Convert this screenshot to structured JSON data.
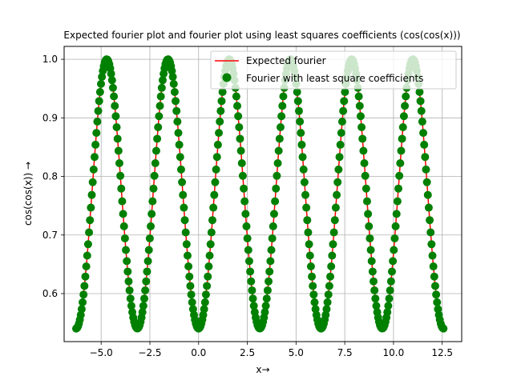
{
  "chart_data": {
    "type": "line",
    "title": "Expected fourier plot and fourier plot using least squares coefficients (cos(cos(x)))",
    "xlabel": "x→",
    "ylabel": "cos(cos(x)) →",
    "xlim": [
      -6.9,
      13.5
    ],
    "ylim": [
      0.518,
      1.022
    ],
    "x_ticks": [
      -5.0,
      -2.5,
      0.0,
      2.5,
      5.0,
      7.5,
      10.0,
      12.5
    ],
    "x_tick_labels": [
      "−5.0",
      "−2.5",
      "0.0",
      "2.5",
      "5.0",
      "7.5",
      "10.0",
      "12.5"
    ],
    "y_ticks": [
      0.6,
      0.7,
      0.8,
      0.9,
      1.0
    ],
    "y_tick_labels": [
      "0.6",
      "0.7",
      "0.8",
      "0.9",
      "1.0"
    ],
    "grid": true,
    "legend_position": "top-right",
    "x_range": [
      -6.2832,
      12.5664
    ],
    "function": "cos(cos(x))",
    "sample_count": 400,
    "series": [
      {
        "name": "Expected fourier",
        "style": "line",
        "color": "#ff0000"
      },
      {
        "name": "Fourier with least square coefficients",
        "style": "scatter",
        "color": "#008000"
      }
    ]
  }
}
